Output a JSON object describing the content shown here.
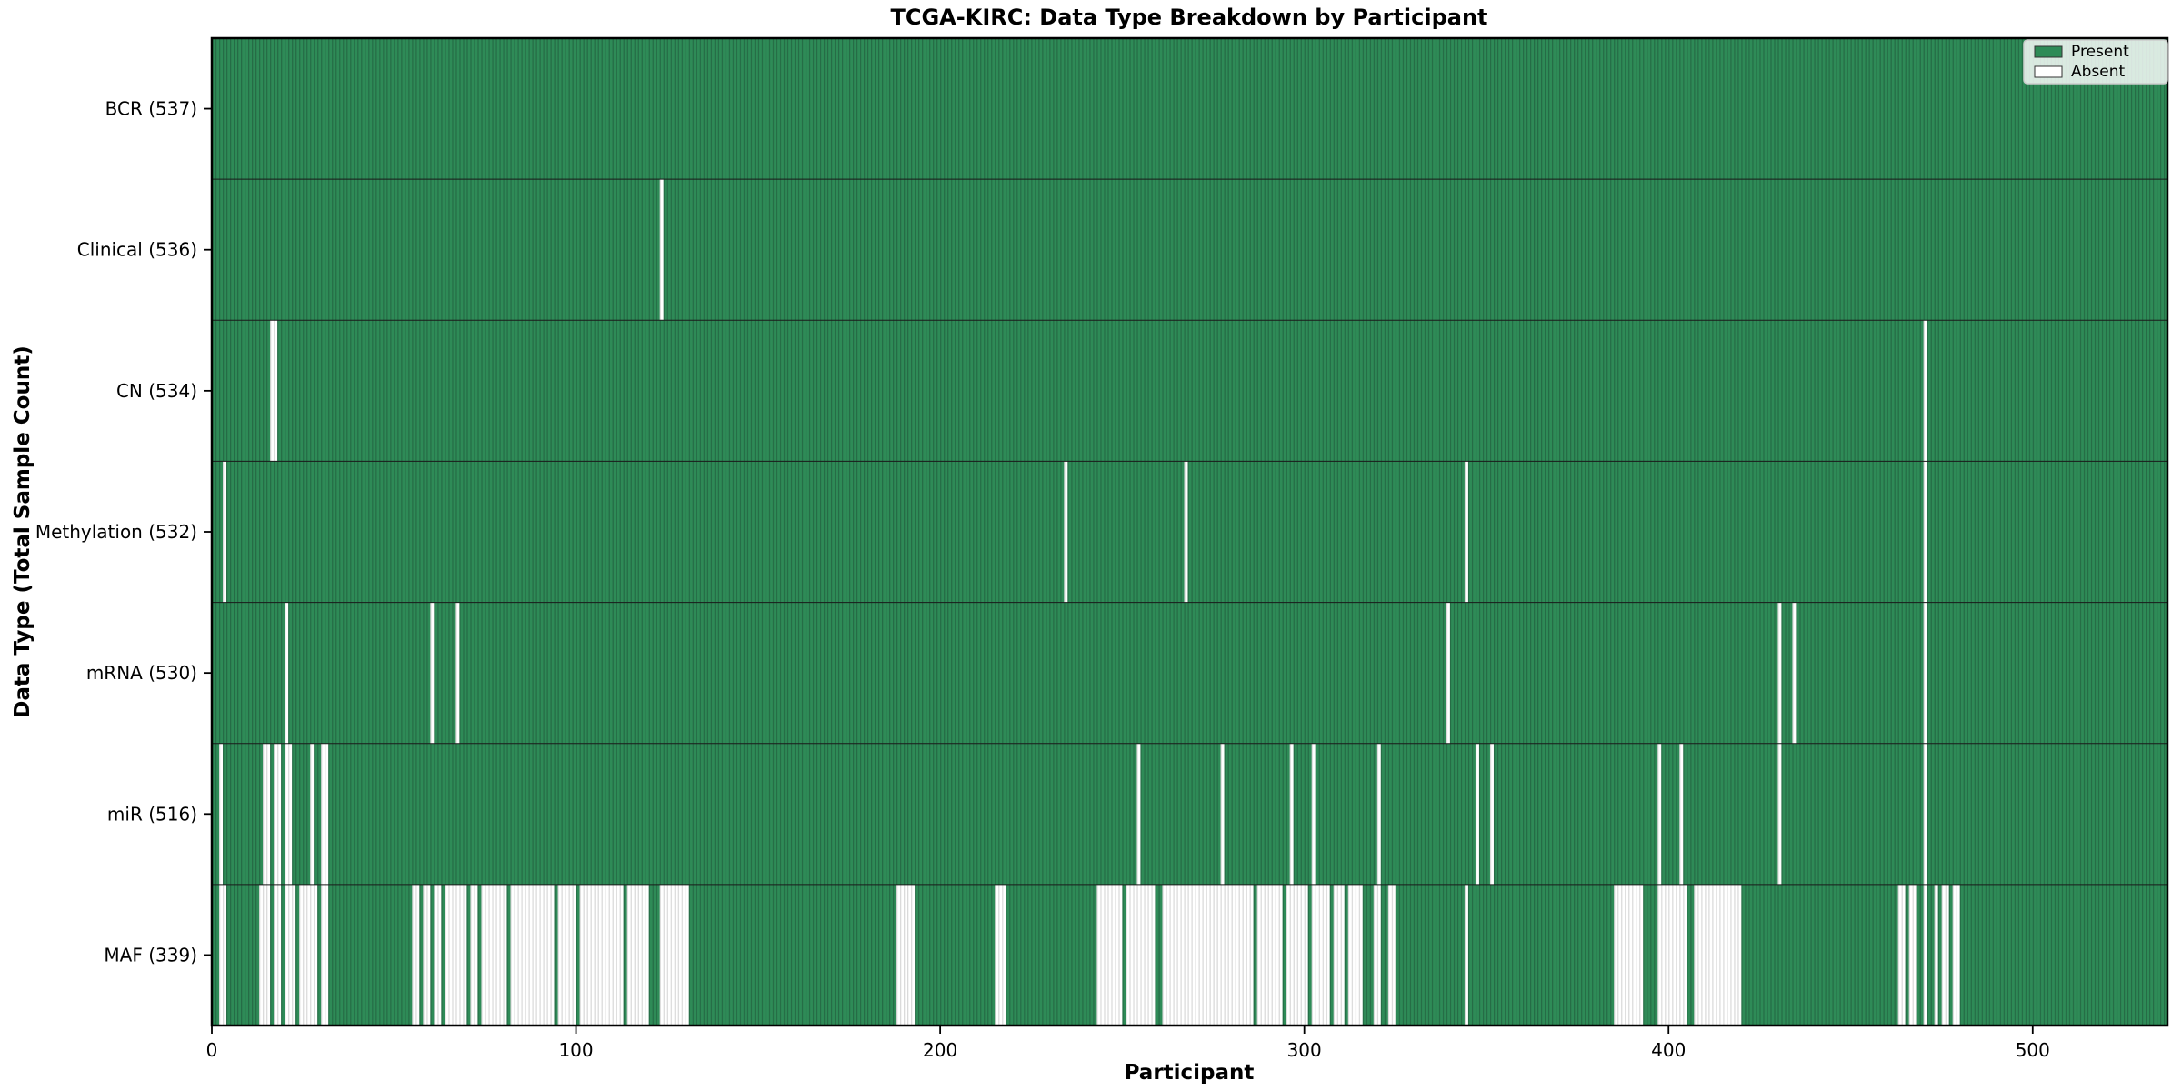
{
  "chart_data": {
    "type": "heatmap",
    "title": "TCGA-KIRC: Data Type Breakdown by Participant",
    "xlabel": "Participant",
    "ylabel": "Data Type (Total Sample Count)",
    "n_participants": 537,
    "x_ticks": [
      0,
      100,
      200,
      300,
      400,
      500
    ],
    "grid": false,
    "legend_position": "upper right",
    "legend": [
      {
        "label": "Present",
        "color": "#2e8b57"
      },
      {
        "label": "Absent",
        "color": "#ffffff"
      }
    ],
    "colors": {
      "present_fill": "#2e8b57",
      "present_edge": "#256b45",
      "absent_fill": "#ffffff",
      "absent_edge": "#d9d9d9",
      "row_divider": "#1a1a1a",
      "spine": "#000000"
    },
    "rows": [
      {
        "name": "BCR",
        "label": "BCR (537)",
        "total": 537,
        "absent_ranges": []
      },
      {
        "name": "Clinical",
        "label": "Clinical (536)",
        "total": 536,
        "absent_ranges": [
          [
            123,
            123
          ]
        ]
      },
      {
        "name": "CN",
        "label": "CN (534)",
        "total": 534,
        "absent_ranges": [
          [
            16,
            17
          ],
          [
            470,
            470
          ]
        ]
      },
      {
        "name": "Methylation",
        "label": "Methylation (532)",
        "total": 532,
        "absent_ranges": [
          [
            3,
            3
          ],
          [
            234,
            234
          ],
          [
            267,
            267
          ],
          [
            344,
            344
          ],
          [
            470,
            470
          ]
        ]
      },
      {
        "name": "mRNA",
        "label": "mRNA (530)",
        "total": 530,
        "absent_ranges": [
          [
            20,
            20
          ],
          [
            60,
            60
          ],
          [
            67,
            67
          ],
          [
            339,
            339
          ],
          [
            430,
            430
          ],
          [
            434,
            434
          ],
          [
            470,
            470
          ]
        ]
      },
      {
        "name": "miR",
        "label": "miR (516)",
        "total": 516,
        "absent_ranges": [
          [
            2,
            2
          ],
          [
            14,
            15
          ],
          [
            17,
            18
          ],
          [
            20,
            21
          ],
          [
            27,
            27
          ],
          [
            30,
            31
          ],
          [
            254,
            254
          ],
          [
            277,
            277
          ],
          [
            296,
            296
          ],
          [
            302,
            302
          ],
          [
            320,
            320
          ],
          [
            347,
            347
          ],
          [
            351,
            351
          ],
          [
            397,
            397
          ],
          [
            403,
            403
          ],
          [
            430,
            430
          ],
          [
            470,
            470
          ]
        ]
      },
      {
        "name": "MAF",
        "label": "MAF (339)",
        "total": 339,
        "absent_ranges": [
          [
            2,
            3
          ],
          [
            13,
            15
          ],
          [
            17,
            18
          ],
          [
            20,
            22
          ],
          [
            24,
            28
          ],
          [
            30,
            31
          ],
          [
            55,
            56
          ],
          [
            58,
            59
          ],
          [
            61,
            62
          ],
          [
            64,
            69
          ],
          [
            71,
            72
          ],
          [
            74,
            80
          ],
          [
            82,
            93
          ],
          [
            95,
            99
          ],
          [
            101,
            112
          ],
          [
            114,
            119
          ],
          [
            123,
            130
          ],
          [
            188,
            192
          ],
          [
            215,
            217
          ],
          [
            243,
            249
          ],
          [
            251,
            258
          ],
          [
            261,
            285
          ],
          [
            287,
            293
          ],
          [
            295,
            300
          ],
          [
            302,
            306
          ],
          [
            308,
            310
          ],
          [
            312,
            315
          ],
          [
            319,
            320
          ],
          [
            323,
            324
          ],
          [
            344,
            344
          ],
          [
            385,
            392
          ],
          [
            397,
            404
          ],
          [
            407,
            419
          ],
          [
            463,
            464
          ],
          [
            466,
            467
          ],
          [
            470,
            470
          ],
          [
            473,
            473
          ],
          [
            475,
            476
          ],
          [
            478,
            479
          ]
        ]
      }
    ]
  }
}
